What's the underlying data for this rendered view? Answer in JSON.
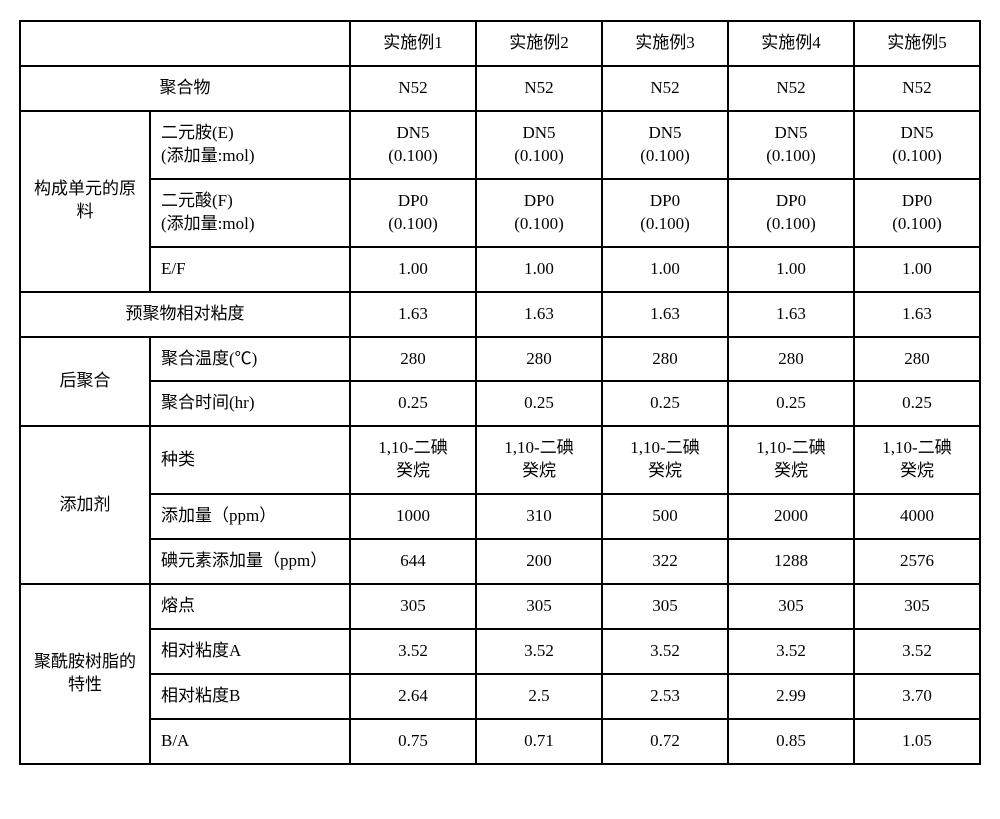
{
  "table": {
    "headers": [
      "实施例1",
      "实施例2",
      "实施例3",
      "实施例4",
      "实施例5"
    ],
    "rows": {
      "polymer": {
        "label": "聚合物",
        "values": [
          "N52",
          "N52",
          "N52",
          "N52",
          "N52"
        ]
      },
      "raw_material": {
        "group_label": "构成单元的原\n料",
        "diamine": {
          "label": "二元胺(E)\n(添加量:mol)",
          "values": [
            "DN5\n(0.100)",
            "DN5\n(0.100)",
            "DN5\n(0.100)",
            "DN5\n(0.100)",
            "DN5\n(0.100)"
          ]
        },
        "diacid": {
          "label": "二元酸(F)\n(添加量:mol)",
          "values": [
            "DP0\n(0.100)",
            "DP0\n(0.100)",
            "DP0\n(0.100)",
            "DP0\n(0.100)",
            "DP0\n(0.100)"
          ]
        },
        "ef_ratio": {
          "label": "E/F",
          "values": [
            "1.00",
            "1.00",
            "1.00",
            "1.00",
            "1.00"
          ]
        }
      },
      "prepolymer_viscosity": {
        "label": "预聚物相对粘度",
        "values": [
          "1.63",
          "1.63",
          "1.63",
          "1.63",
          "1.63"
        ]
      },
      "post_polymerization": {
        "group_label": "后聚合",
        "temp": {
          "label": "聚合温度(℃)",
          "values": [
            "280",
            "280",
            "280",
            "280",
            "280"
          ]
        },
        "time": {
          "label": "聚合时间(hr)",
          "values": [
            "0.25",
            "0.25",
            "0.25",
            "0.25",
            "0.25"
          ]
        }
      },
      "additive": {
        "group_label": "添加剂",
        "type": {
          "label": "种类",
          "values": [
            "1,10-二碘\n癸烷",
            "1,10-二碘\n癸烷",
            "1,10-二碘\n癸烷",
            "1,10-二碘\n癸烷",
            "1,10-二碘\n癸烷"
          ]
        },
        "amount": {
          "label": "添加量（ppm）",
          "values": [
            "1000",
            "310",
            "500",
            "2000",
            "4000"
          ]
        },
        "iodine": {
          "label": "碘元素添加量（ppm）",
          "values": [
            "644",
            "200",
            "322",
            "1288",
            "2576"
          ]
        }
      },
      "resin_properties": {
        "group_label": "聚酰胺树脂的\n特性",
        "melting_point": {
          "label": "熔点",
          "values": [
            "305",
            "305",
            "305",
            "305",
            "305"
          ]
        },
        "viscosity_a": {
          "label": "相对粘度A",
          "values": [
            "3.52",
            "3.52",
            "3.52",
            "3.52",
            "3.52"
          ]
        },
        "viscosity_b": {
          "label": "相对粘度B",
          "values": [
            "2.64",
            "2.5",
            "2.53",
            "2.99",
            "3.70"
          ]
        },
        "ba_ratio": {
          "label": "B/A",
          "values": [
            "0.75",
            "0.71",
            "0.72",
            "0.85",
            "1.05"
          ]
        }
      }
    }
  }
}
